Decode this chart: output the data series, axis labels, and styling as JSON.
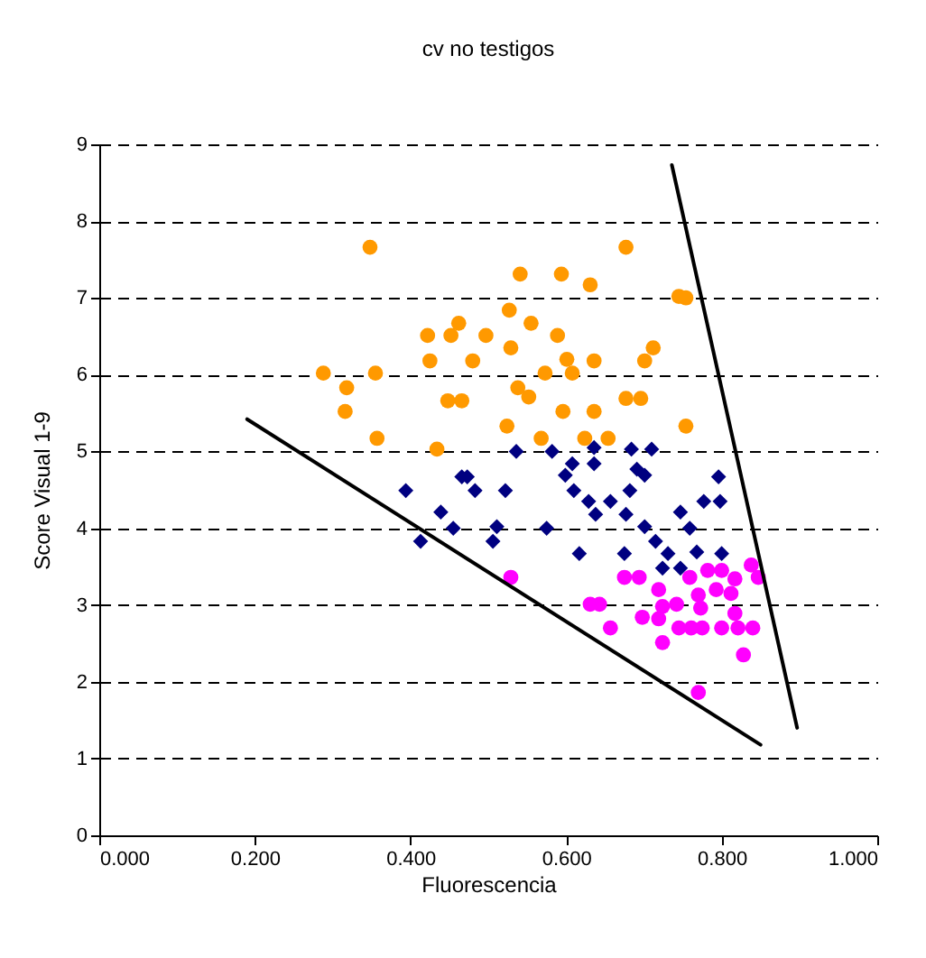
{
  "chart_data": {
    "type": "scatter",
    "title": "cv no testigos",
    "xlabel": "Fluorescencia",
    "ylabel": "Score Visual 1-9",
    "xlim": [
      0,
      1
    ],
    "ylim": [
      0,
      9
    ],
    "xticks": [
      {
        "value": 0,
        "label": "0.000"
      },
      {
        "value": 0.2,
        "label": "0.200"
      },
      {
        "value": 0.4,
        "label": "0.400"
      },
      {
        "value": 0.6,
        "label": "0.600"
      },
      {
        "value": 0.8,
        "label": "0.800"
      },
      {
        "value": 1,
        "label": "1.000"
      }
    ],
    "yticks": [
      0,
      1,
      2,
      3,
      4,
      5,
      6,
      7,
      8,
      9
    ],
    "grid": "y",
    "series": [
      {
        "color": "#ff9900",
        "marker": "circle",
        "x": [
          0.348,
          0.541,
          0.422,
          0.452,
          0.462,
          0.497,
          0.527,
          0.529,
          0.425,
          0.48,
          0.288,
          0.318,
          0.355,
          0.316,
          0.448,
          0.466,
          0.524,
          0.357,
          0.434,
          0.677,
          0.594,
          0.631,
          0.745,
          0.754,
          0.555,
          0.589,
          0.712,
          0.701,
          0.601,
          0.608,
          0.636,
          0.573,
          0.538,
          0.552,
          0.677,
          0.696,
          0.596,
          0.636,
          0.568,
          0.624,
          0.654,
          0.754
        ],
        "values": [
          7.66,
          7.31,
          6.51,
          6.51,
          6.67,
          6.51,
          6.84,
          6.35,
          6.18,
          6.18,
          6.02,
          5.83,
          6.02,
          5.52,
          5.66,
          5.66,
          5.33,
          5.17,
          5.03,
          7.66,
          7.31,
          7.17,
          7.02,
          7.0,
          6.67,
          6.51,
          6.35,
          6.18,
          6.2,
          6.02,
          6.18,
          6.02,
          5.83,
          5.71,
          5.69,
          5.69,
          5.52,
          5.52,
          5.17,
          5.17,
          5.17,
          5.33
        ]
      },
      {
        "color": "#000080",
        "marker": "diamond",
        "x": [
          0.394,
          0.466,
          0.473,
          0.483,
          0.522,
          0.439,
          0.455,
          0.413,
          0.511,
          0.506,
          0.536,
          0.582,
          0.636,
          0.684,
          0.71,
          0.608,
          0.599,
          0.636,
          0.691,
          0.701,
          0.61,
          0.682,
          0.796,
          0.777,
          0.798,
          0.629,
          0.638,
          0.657,
          0.677,
          0.747,
          0.759,
          0.701,
          0.715,
          0.575,
          0.617,
          0.675,
          0.731,
          0.768,
          0.8,
          0.724,
          0.747
        ],
        "values": [
          4.49,
          4.67,
          4.67,
          4.49,
          4.49,
          4.21,
          4.0,
          3.83,
          4.02,
          3.83,
          5.0,
          5.0,
          5.05,
          5.03,
          5.03,
          4.84,
          4.69,
          4.84,
          4.77,
          4.69,
          4.49,
          4.49,
          4.67,
          4.35,
          4.35,
          4.35,
          4.18,
          4.35,
          4.18,
          4.21,
          4.0,
          4.02,
          3.83,
          4.0,
          3.67,
          3.67,
          3.67,
          3.69,
          3.67,
          3.48,
          3.48
        ]
      },
      {
        "color": "#ff00ff",
        "marker": "circle",
        "x": [
          0.529,
          0.675,
          0.694,
          0.719,
          0.759,
          0.782,
          0.8,
          0.838,
          0.847,
          0.817,
          0.77,
          0.793,
          0.812,
          0.742,
          0.724,
          0.631,
          0.643,
          0.773,
          0.698,
          0.719,
          0.817,
          0.745,
          0.761,
          0.775,
          0.8,
          0.821,
          0.84,
          0.657,
          0.724,
          0.828,
          0.77
        ],
        "values": [
          3.36,
          3.36,
          3.36,
          3.2,
          3.36,
          3.45,
          3.45,
          3.52,
          3.36,
          3.34,
          3.13,
          3.2,
          3.15,
          3.01,
          2.98,
          3.01,
          3.01,
          2.96,
          2.84,
          2.82,
          2.89,
          2.7,
          2.7,
          2.7,
          2.7,
          2.7,
          2.7,
          2.7,
          2.51,
          2.35,
          1.86
        ]
      },
      {
        "type": "line",
        "color": "#000000",
        "x": [
          0.19,
          0.85
        ],
        "values": [
          5.42,
          1.18
        ]
      },
      {
        "type": "line",
        "color": "#000000",
        "x": [
          0.736,
          0.897
        ],
        "values": [
          8.73,
          1.4
        ]
      }
    ]
  }
}
